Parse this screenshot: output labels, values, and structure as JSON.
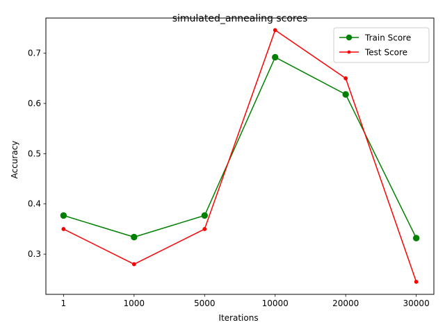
{
  "chart_data": {
    "type": "line",
    "title": "simulated_annealing scores",
    "xlabel": "Iterations",
    "ylabel": "Accuracy",
    "categories": [
      "1",
      "1000",
      "5000",
      "10000",
      "20000",
      "30000"
    ],
    "ylim": [
      0.22,
      0.77
    ],
    "yticks": [
      "0.3",
      "0.4",
      "0.5",
      "0.6",
      "0.7"
    ],
    "grid": false,
    "legend_position": "top-right",
    "series": [
      {
        "name": "Train Score",
        "color": "#008000",
        "marker": "circle-large",
        "values": [
          0.377,
          0.334,
          0.377,
          0.692,
          0.618,
          0.332
        ]
      },
      {
        "name": "Test Score",
        "color": "#ff0000",
        "marker": "circle-small",
        "values": [
          0.35,
          0.28,
          0.35,
          0.746,
          0.65,
          0.245
        ]
      }
    ]
  }
}
